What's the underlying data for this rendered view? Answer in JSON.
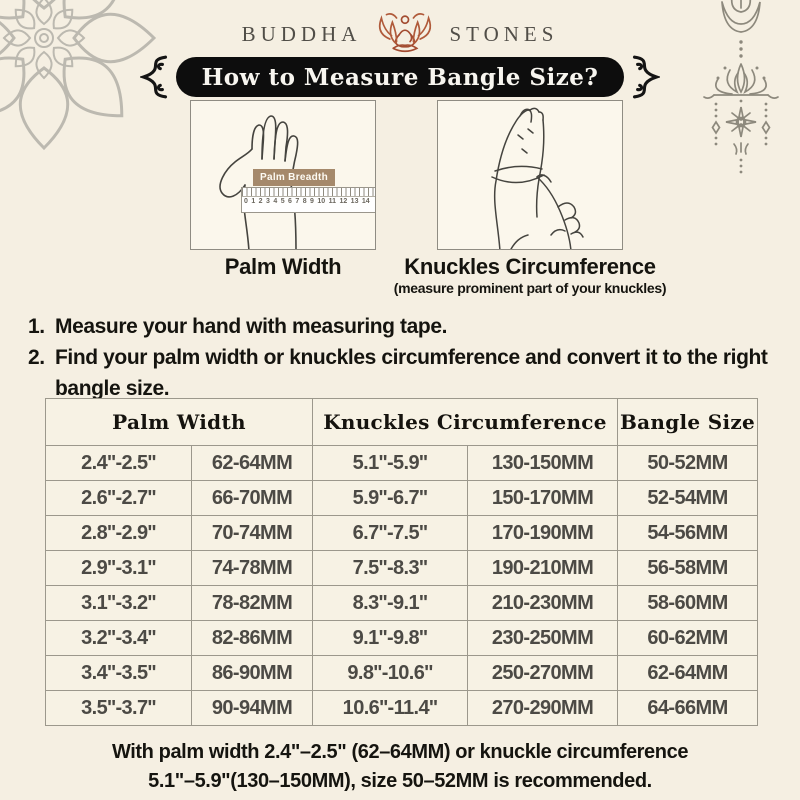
{
  "brand": {
    "left": "BUDDHA",
    "right": "STONES"
  },
  "banner": {
    "title": "How to Measure Bangle Size?"
  },
  "illustrations": {
    "palm": {
      "ruler_label": "Palm Breadth",
      "ruler_numbers": "0 1 2 3 4 5 6 7 8 9 10 11 12 13 14",
      "caption": "Palm Width"
    },
    "knuckles": {
      "caption": "Knuckles Circumference",
      "subcaption": "(measure prominent part of your knuckles)"
    }
  },
  "instructions": [
    {
      "num": "1.",
      "text": "Measure your hand with measuring tape."
    },
    {
      "num": "2.",
      "text": "Find your palm width or knuckles circumference and convert it to the right bangle size."
    }
  ],
  "table": {
    "headers": [
      "Palm Width",
      "Knuckles Circumference",
      "Bangle Size"
    ],
    "rows": [
      [
        "2.4''-2.5''",
        "62-64MM",
        "5.1''-5.9''",
        "130-150MM",
        "50-52MM"
      ],
      [
        "2.6''-2.7''",
        "66-70MM",
        "5.9''-6.7''",
        "150-170MM",
        "52-54MM"
      ],
      [
        "2.8''-2.9''",
        "70-74MM",
        "6.7''-7.5''",
        "170-190MM",
        "54-56MM"
      ],
      [
        "2.9''-3.1''",
        "74-78MM",
        "7.5''-8.3''",
        "190-210MM",
        "56-58MM"
      ],
      [
        "3.1''-3.2''",
        "78-82MM",
        "8.3''-9.1''",
        "210-230MM",
        "58-60MM"
      ],
      [
        "3.2''-3.4''",
        "82-86MM",
        "9.1''-9.8''",
        "230-250MM",
        "60-62MM"
      ],
      [
        "3.4''-3.5''",
        "86-90MM",
        "9.8''-10.6''",
        "250-270MM",
        "62-64MM"
      ],
      [
        "3.5''-3.7''",
        "90-94MM",
        "10.6''-11.4''",
        "270-290MM",
        "64-66MM"
      ]
    ]
  },
  "footer": {
    "line1": "With palm width 2.4\"–2.5\" (62–64MM) or knuckle circumference",
    "line2": "5.1\"–5.9\"(130–150MM), size 50–52MM is recommended."
  },
  "colors": {
    "page_bg": "#f5efe2",
    "banner_bg": "#0d0d0d",
    "banner_text": "#f7f5ef",
    "logo_accent": "#9c4731",
    "ruler_label_bg": "#a5896b",
    "table_border": "#9c988c",
    "table_text": "#4c4a45",
    "decor_gray": "#8d897d"
  }
}
